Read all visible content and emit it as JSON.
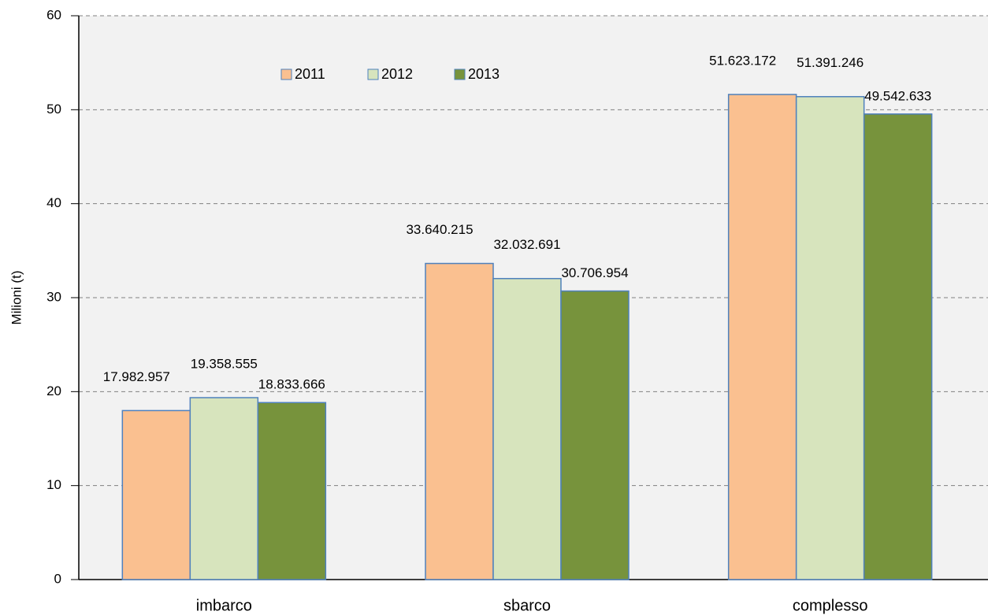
{
  "chart_data": {
    "type": "bar",
    "ylabel": "Milioni (t)",
    "categories": [
      "imbarco",
      "sbarco",
      "complesso"
    ],
    "series": [
      {
        "name": "2011",
        "color": "#fac090",
        "values": [
          17.982957,
          33.640215,
          51.623172
        ],
        "value_labels": [
          "17.982.957",
          "33.640.215",
          "51.623.172"
        ]
      },
      {
        "name": "2012",
        "color": "#d7e4bd",
        "values": [
          19.358555,
          32.032691,
          51.391246
        ],
        "value_labels": [
          "19.358.555",
          "32.032.691",
          "51.391.246"
        ]
      },
      {
        "name": "2013",
        "color": "#77933c",
        "values": [
          18.833666,
          30.706954,
          49.542633
        ],
        "value_labels": [
          "18.833.666",
          "30.706.954",
          "49.542.633"
        ]
      }
    ],
    "ylim": [
      0,
      60
    ],
    "yticks": [
      0,
      10,
      20,
      30,
      40,
      50,
      60
    ],
    "grid": true,
    "legend": "top"
  }
}
